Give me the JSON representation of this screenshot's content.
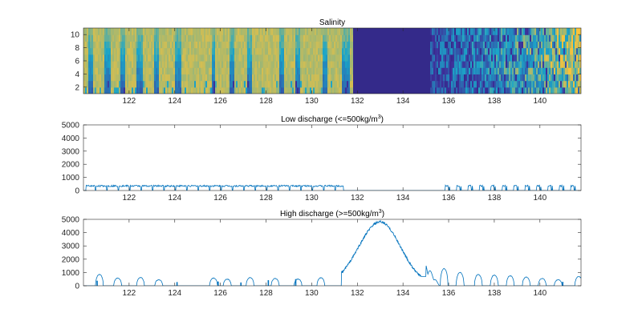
{
  "colors": {
    "line": "#0072bd",
    "salinity_high": "#f9c33a",
    "salinity_mid": "#1ba5c8",
    "salinity_low": "#3e2f9a",
    "salinity_fresh": "#342a8a"
  },
  "chart_data": [
    {
      "type": "heatmap",
      "title": "Salinity",
      "xlim": [
        120,
        141.8
      ],
      "ylim": [
        1,
        11
      ],
      "xticks": [
        "122",
        "124",
        "126",
        "128",
        "130",
        "132",
        "134",
        "136",
        "138",
        "140"
      ],
      "yticks": [
        "2",
        "4",
        "6",
        "8",
        "10"
      ],
      "low_salinity_bands": [
        [
          120.2,
          120.4
        ],
        [
          120.9,
          121.2
        ],
        [
          121.6,
          121.8
        ],
        [
          122.3,
          122.6
        ],
        [
          123.1,
          123.3
        ],
        [
          124.0,
          124.3
        ],
        [
          125.6,
          125.8
        ],
        [
          126.4,
          126.6
        ],
        [
          127.2,
          127.4
        ],
        [
          128.6,
          128.8
        ],
        [
          129.3,
          129.5
        ],
        [
          130.5,
          130.7
        ],
        [
          131.3,
          131.7
        ]
      ],
      "fresh_period": [
        131.8,
        135.2
      ],
      "recovery_period": [
        135.2,
        141.8
      ]
    },
    {
      "type": "line",
      "title": "Low discharge (<=500kg/m³)",
      "xlim": [
        120,
        141.8
      ],
      "ylim": [
        0,
        5000
      ],
      "xticks": [
        "122",
        "124",
        "126",
        "128",
        "130",
        "132",
        "134",
        "136",
        "138",
        "140"
      ],
      "yticks": [
        "0",
        "1000",
        "2000",
        "3000",
        "4000",
        "5000"
      ],
      "typical_value": 350,
      "active_periods": [
        [
          120.1,
          131.4
        ],
        [
          135.6,
          141.8
        ]
      ]
    },
    {
      "type": "line",
      "title": "High discharge (>=500kg/m³)",
      "xlim": [
        120,
        141.8
      ],
      "ylim": [
        0,
        5000
      ],
      "xticks": [
        "122",
        "124",
        "126",
        "128",
        "130",
        "132",
        "134",
        "136",
        "138",
        "140"
      ],
      "yticks": [
        "0",
        "1000",
        "2000",
        "3000",
        "4000",
        "5000"
      ],
      "daily_pulses": [
        {
          "x": 120.7,
          "y": 850
        },
        {
          "x": 121.5,
          "y": 580
        },
        {
          "x": 122.5,
          "y": 620
        },
        {
          "x": 123.3,
          "y": 450
        },
        {
          "x": 125.7,
          "y": 580
        },
        {
          "x": 126.3,
          "y": 500
        },
        {
          "x": 127.3,
          "y": 620
        },
        {
          "x": 128.4,
          "y": 550
        },
        {
          "x": 129.4,
          "y": 500
        },
        {
          "x": 130.4,
          "y": 600
        },
        {
          "x": 135.8,
          "y": 1300
        },
        {
          "x": 136.5,
          "y": 1000
        },
        {
          "x": 137.3,
          "y": 850
        },
        {
          "x": 138.0,
          "y": 800
        },
        {
          "x": 138.7,
          "y": 750
        },
        {
          "x": 139.4,
          "y": 650
        },
        {
          "x": 140.1,
          "y": 550
        },
        {
          "x": 140.8,
          "y": 450
        },
        {
          "x": 141.7,
          "y": 700
        }
      ],
      "spikes": [
        {
          "x": 120.6,
          "y": 380
        },
        {
          "x": 124.1,
          "y": 280
        },
        {
          "x": 125.9,
          "y": 320
        },
        {
          "x": 126.9,
          "y": 250
        },
        {
          "x": 128.1,
          "y": 420
        },
        {
          "x": 129.3,
          "y": 500
        },
        {
          "x": 141.0,
          "y": 300
        }
      ],
      "main_event": {
        "start": 131.3,
        "peak_x": 133.0,
        "peak_y": 4800,
        "end": 135.0,
        "end_y": 1700
      }
    }
  ]
}
